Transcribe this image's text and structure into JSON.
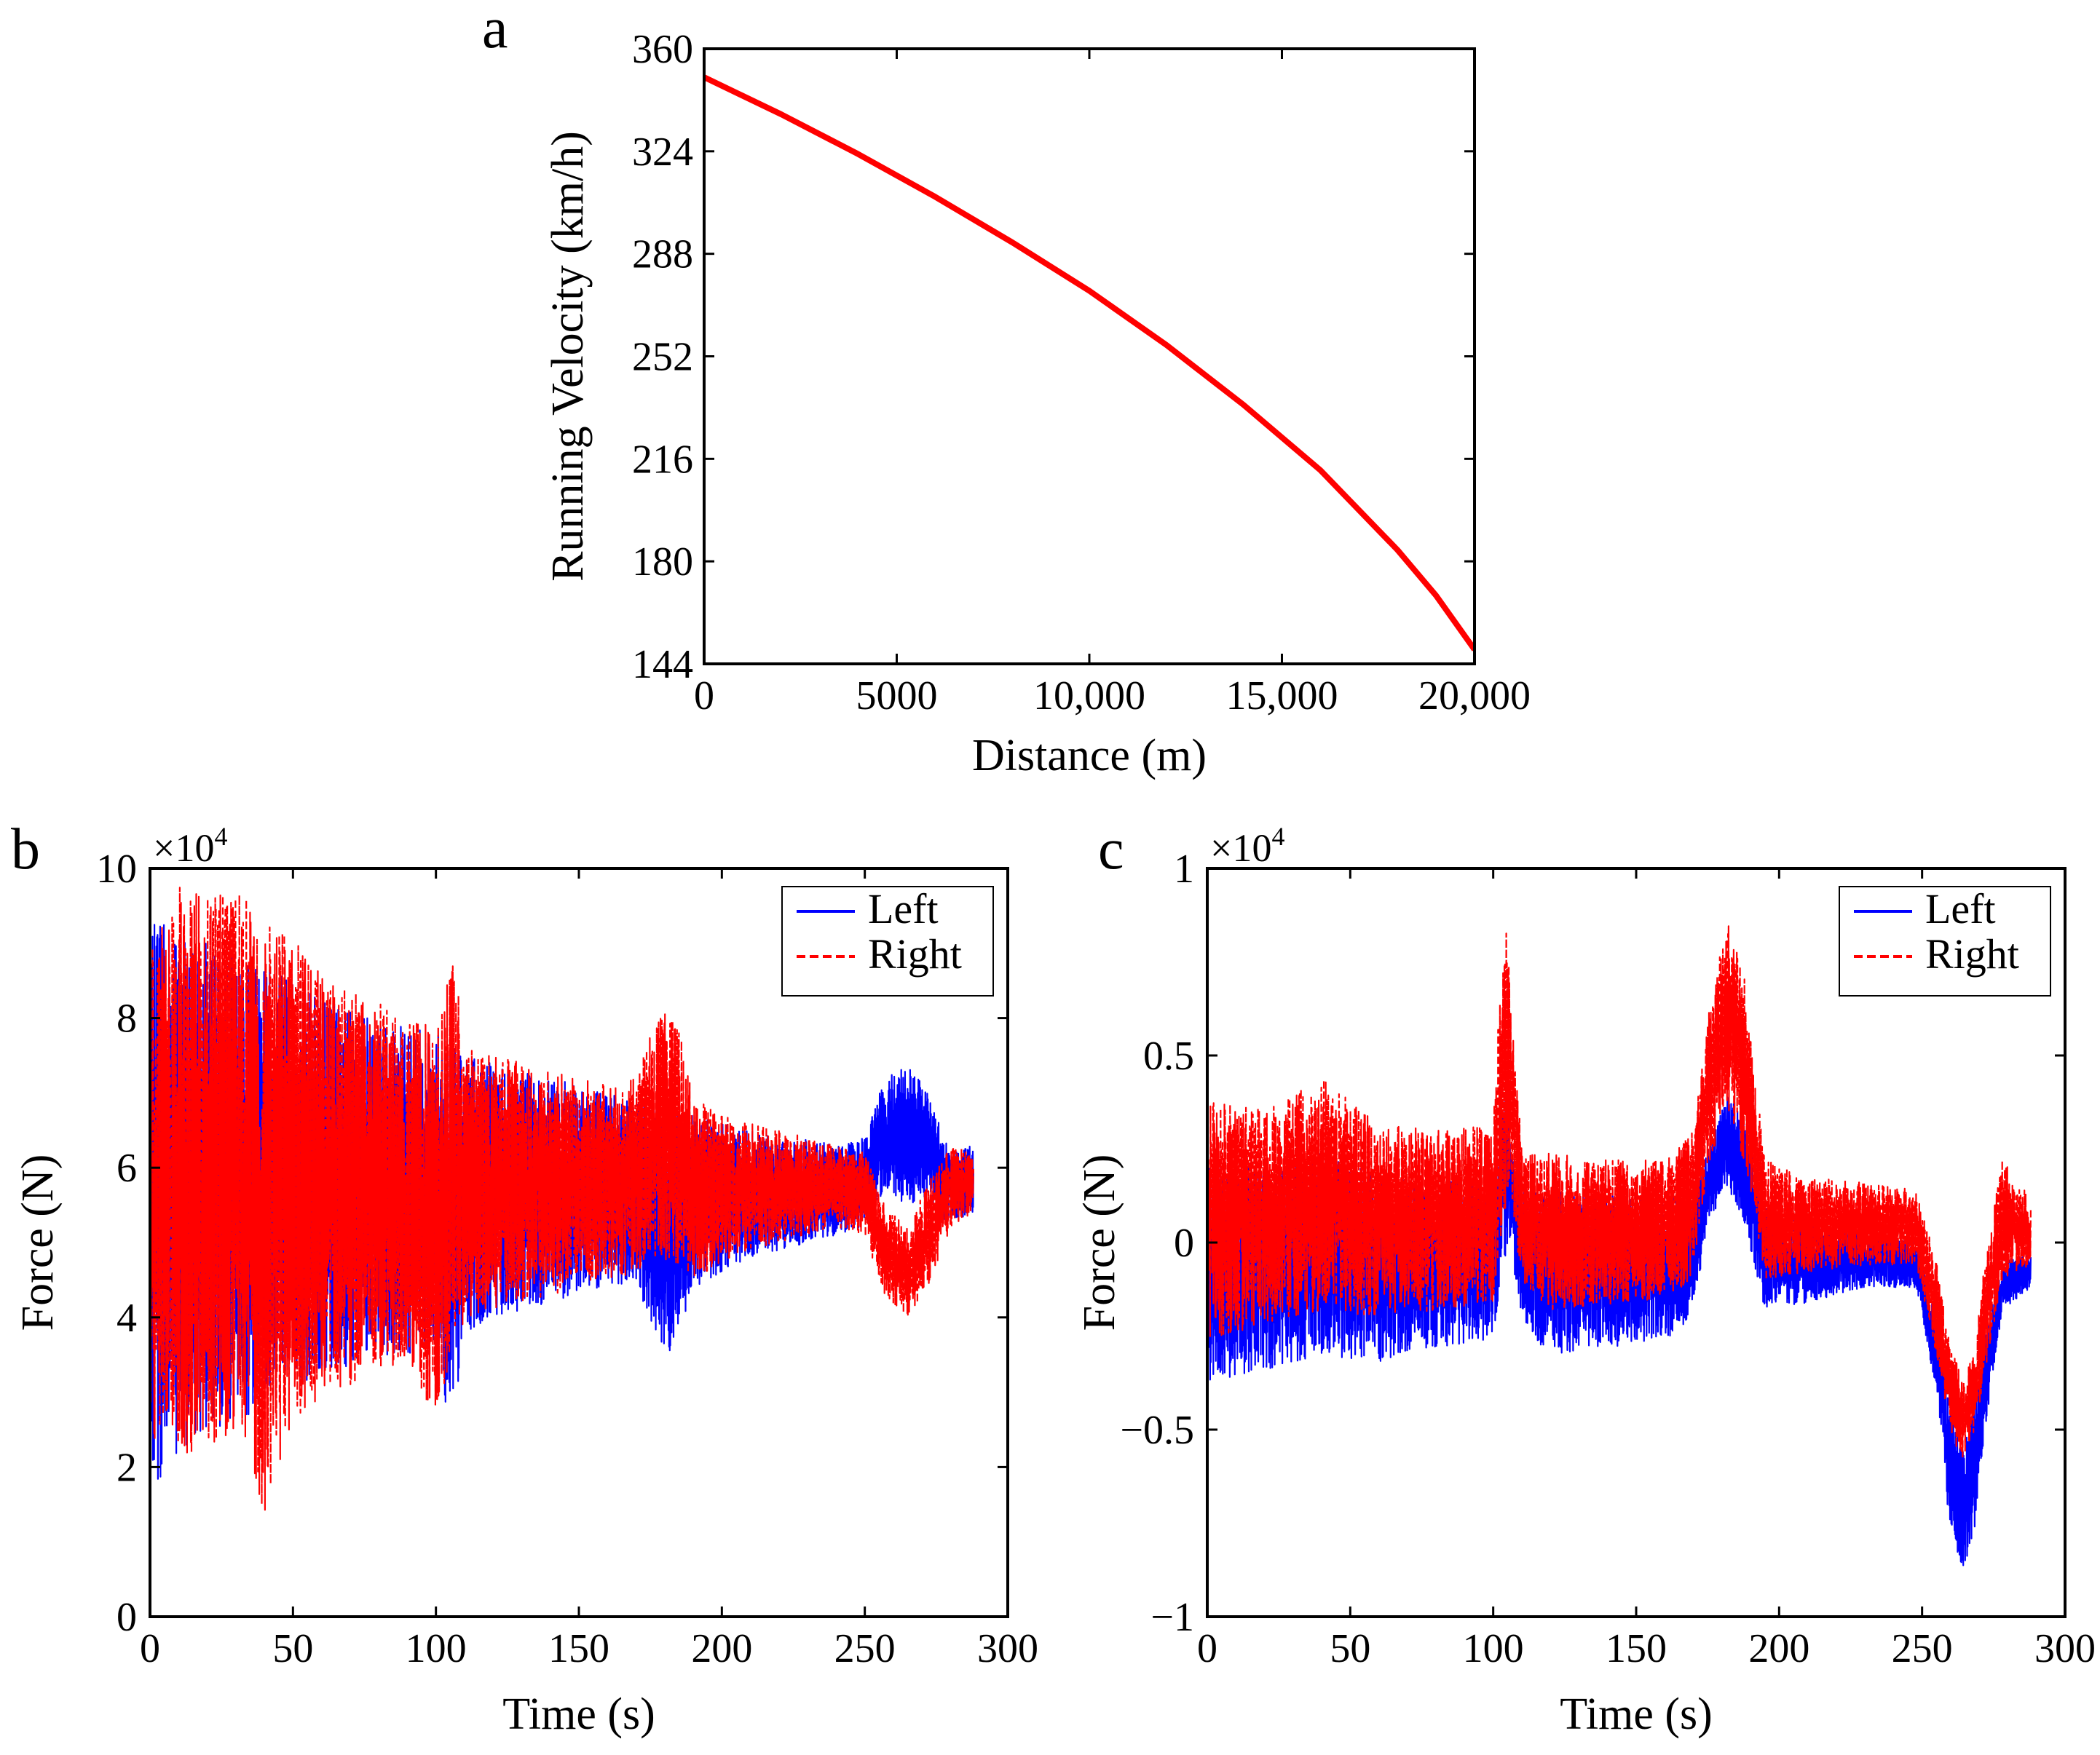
{
  "chart_data": [
    {
      "panel": "a",
      "type": "line",
      "xlabel": "Distance (m)",
      "ylabel": "Running Velocity (km/h)",
      "xlim": [
        0,
        20000
      ],
      "ylim": [
        144,
        360
      ],
      "xticks": [
        0,
        5000,
        10000,
        15000,
        20000
      ],
      "xtick_labels": [
        "0",
        "5000",
        "10,000",
        "15,000",
        "20,000"
      ],
      "yticks": [
        144,
        180,
        216,
        252,
        288,
        324,
        360
      ],
      "ytick_labels": [
        "144",
        "180",
        "216",
        "252",
        "288",
        "324",
        "360"
      ],
      "grid": false,
      "series": [
        {
          "color": "#ff0000",
          "x": [
            0,
            2000,
            4000,
            6000,
            8000,
            10000,
            12000,
            14000,
            16000,
            18000,
            19000,
            20000
          ],
          "y": [
            350,
            337,
            323,
            308,
            292,
            275,
            256,
            235,
            212,
            184,
            168,
            149
          ]
        }
      ]
    },
    {
      "panel": "b",
      "type": "line",
      "xlabel": "Time (s)",
      "ylabel": "Force (N)",
      "multiplier": "×10",
      "multiplier_exp": "4",
      "xlim": [
        0,
        300
      ],
      "ylim": [
        0,
        10
      ],
      "xticks": [
        0,
        50,
        100,
        150,
        200,
        250,
        300
      ],
      "xtick_labels": [
        "0",
        "50",
        "100",
        "150",
        "200",
        "250",
        "300"
      ],
      "yticks": [
        0,
        2,
        4,
        6,
        8,
        10
      ],
      "ytick_labels": [
        "0",
        "2",
        "4",
        "6",
        "8",
        "10"
      ],
      "legend_position": "top-right",
      "grid": false,
      "series": [
        {
          "name": "Left",
          "color": "#0000ff",
          "style": "solid",
          "x": [
            0,
            10,
            20,
            30,
            40,
            50,
            60,
            70,
            80,
            90,
            100,
            105,
            108,
            110,
            120,
            130,
            140,
            150,
            160,
            170,
            178,
            185,
            190,
            200,
            210,
            220,
            230,
            240,
            250,
            257,
            265,
            272,
            280,
            288
          ],
          "upper": [
            9.3,
            9.2,
            9.0,
            8.9,
            8.7,
            8.5,
            8.3,
            8.1,
            8.0,
            7.9,
            7.8,
            7.7,
            7.6,
            7.5,
            7.4,
            7.3,
            7.2,
            7.1,
            7.0,
            6.9,
            6.8,
            6.8,
            6.7,
            6.6,
            6.5,
            6.4,
            6.4,
            6.3,
            6.4,
            7.2,
            7.4,
            7.0,
            6.2,
            6.3
          ],
          "lower": [
            1.5,
            2.2,
            2.4,
            2.6,
            2.8,
            3.0,
            3.2,
            3.3,
            3.4,
            3.5,
            3.7,
            2.4,
            3.0,
            3.8,
            4.0,
            4.1,
            4.2,
            4.3,
            4.4,
            4.5,
            3.5,
            3.6,
            4.4,
            4.6,
            4.8,
            4.9,
            5.0,
            5.1,
            5.2,
            5.7,
            5.5,
            5.6,
            5.2,
            5.4
          ]
        },
        {
          "name": "Right",
          "color": "#ff0000",
          "style": "dashed",
          "x": [
            0,
            10,
            20,
            30,
            40,
            50,
            60,
            70,
            80,
            90,
            100,
            105,
            108,
            110,
            120,
            130,
            140,
            150,
            160,
            170,
            178,
            185,
            190,
            200,
            210,
            220,
            230,
            240,
            250,
            257,
            265,
            272,
            280,
            288
          ],
          "upper": [
            8.9,
            9.8,
            9.6,
            9.9,
            9.3,
            9.1,
            8.6,
            8.4,
            8.2,
            8.0,
            7.9,
            8.8,
            8.5,
            7.6,
            7.5,
            7.4,
            7.3,
            7.2,
            7.1,
            7.2,
            8.2,
            7.9,
            7.0,
            6.7,
            6.6,
            6.5,
            6.4,
            6.3,
            6.2,
            5.5,
            5.2,
            5.8,
            6.3,
            6.2
          ],
          "lower": [
            2.2,
            2.1,
            2.3,
            2.4,
            1.4,
            2.6,
            2.9,
            3.1,
            3.3,
            3.4,
            2.5,
            3.5,
            3.7,
            4.0,
            4.1,
            4.2,
            4.3,
            4.4,
            4.5,
            4.6,
            4.8,
            4.7,
            4.5,
            4.7,
            4.9,
            5.0,
            5.1,
            5.2,
            5.1,
            4.3,
            4.0,
            4.4,
            5.2,
            5.4
          ]
        }
      ]
    },
    {
      "panel": "c",
      "type": "line",
      "xlabel": "Time (s)",
      "ylabel": "Force (N)",
      "multiplier": "×10",
      "multiplier_exp": "4",
      "xlim": [
        0,
        300
      ],
      "ylim": [
        -1,
        1
      ],
      "xticks": [
        0,
        50,
        100,
        150,
        200,
        250,
        300
      ],
      "xtick_labels": [
        "0",
        "50",
        "100",
        "150",
        "200",
        "250",
        "300"
      ],
      "yticks": [
        -1,
        -0.5,
        0,
        0.5,
        1
      ],
      "ytick_labels": [
        "−1",
        "−0.5",
        "0",
        "0.5",
        "1"
      ],
      "legend_position": "top-right",
      "grid": false,
      "series": [
        {
          "name": "Left",
          "color": "#0000ff",
          "style": "solid",
          "x": [
            0,
            20,
            40,
            60,
            80,
            100,
            104,
            106,
            110,
            120,
            140,
            160,
            170,
            175,
            182,
            188,
            195,
            210,
            230,
            248,
            255,
            260,
            264,
            268,
            272,
            278,
            288
          ],
          "upper": [
            0.22,
            0.2,
            0.24,
            0.18,
            0.16,
            0.18,
            0.4,
            0.3,
            0.16,
            0.14,
            0.13,
            0.12,
            0.14,
            0.25,
            0.4,
            0.32,
            0.1,
            0.05,
            0.03,
            0.0,
            -0.2,
            -0.45,
            -0.55,
            -0.45,
            -0.25,
            -0.05,
            -0.03
          ],
          "lower": [
            -0.38,
            -0.34,
            -0.3,
            -0.32,
            -0.28,
            -0.26,
            -0.05,
            0.0,
            -0.22,
            -0.3,
            -0.28,
            -0.26,
            -0.2,
            0.05,
            0.15,
            0.05,
            -0.18,
            -0.16,
            -0.12,
            -0.12,
            -0.4,
            -0.8,
            -0.87,
            -0.8,
            -0.5,
            -0.18,
            -0.12
          ]
        },
        {
          "name": "Right",
          "color": "#ff0000",
          "style": "dashed",
          "x": [
            0,
            20,
            40,
            60,
            80,
            100,
            104,
            106,
            110,
            120,
            140,
            160,
            170,
            175,
            182,
            188,
            195,
            210,
            230,
            248,
            255,
            260,
            264,
            268,
            272,
            278,
            288
          ],
          "upper": [
            0.38,
            0.36,
            0.44,
            0.32,
            0.3,
            0.32,
            0.92,
            0.7,
            0.26,
            0.24,
            0.22,
            0.22,
            0.3,
            0.6,
            0.87,
            0.7,
            0.22,
            0.18,
            0.16,
            0.14,
            -0.05,
            -0.28,
            -0.36,
            -0.3,
            -0.05,
            0.22,
            0.12
          ],
          "lower": [
            -0.26,
            -0.22,
            -0.18,
            -0.2,
            -0.18,
            -0.16,
            0.08,
            0.12,
            -0.1,
            -0.18,
            -0.17,
            -0.15,
            -0.1,
            0.2,
            0.35,
            0.2,
            -0.1,
            -0.08,
            -0.06,
            -0.06,
            -0.3,
            -0.52,
            -0.58,
            -0.52,
            -0.35,
            -0.1,
            -0.06
          ]
        }
      ]
    }
  ],
  "panels": {
    "a": {
      "letter": "a"
    },
    "b": {
      "letter": "b"
    },
    "c": {
      "letter": "c"
    }
  }
}
